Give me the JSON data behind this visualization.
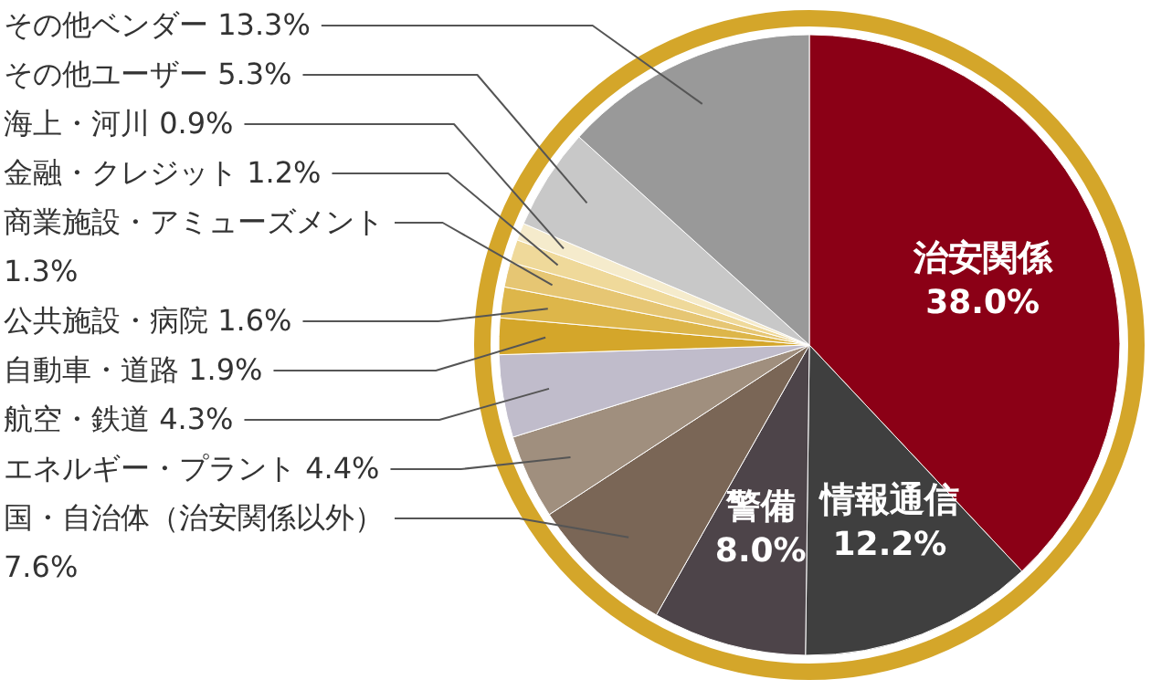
{
  "chart_data": {
    "type": "pie",
    "categories": [
      "治安関係",
      "情報通信",
      "警備",
      "国・自治体（治安関係以外）",
      "エネルギー・プラント",
      "航空・鉄道",
      "自動車・道路",
      "公共施設・病院",
      "商業施設・アミューズメント",
      "金融・クレジット",
      "海上・河川",
      "その他ユーザー",
      "その他ベンダー"
    ],
    "values": [
      38.0,
      12.2,
      8.0,
      7.6,
      4.4,
      4.3,
      1.9,
      1.6,
      1.3,
      1.2,
      0.9,
      5.3,
      13.3
    ],
    "value_labels": [
      "38.0%",
      "12.2%",
      "8.0%",
      "7.6%",
      "4.4%",
      "4.3%",
      "1.9%",
      "1.6%",
      "1.3%",
      "1.2%",
      "0.9%",
      "5.3%",
      "13.3%"
    ],
    "colors": [
      "#8b0016",
      "#3f3f3f",
      "#4d4449",
      "#7a6656",
      "#a08f7e",
      "#c0bccb",
      "#d4a62a",
      "#ddb64a",
      "#e6c673",
      "#efd99a",
      "#f5ebcc",
      "#c8c8c8",
      "#999999"
    ]
  }
}
